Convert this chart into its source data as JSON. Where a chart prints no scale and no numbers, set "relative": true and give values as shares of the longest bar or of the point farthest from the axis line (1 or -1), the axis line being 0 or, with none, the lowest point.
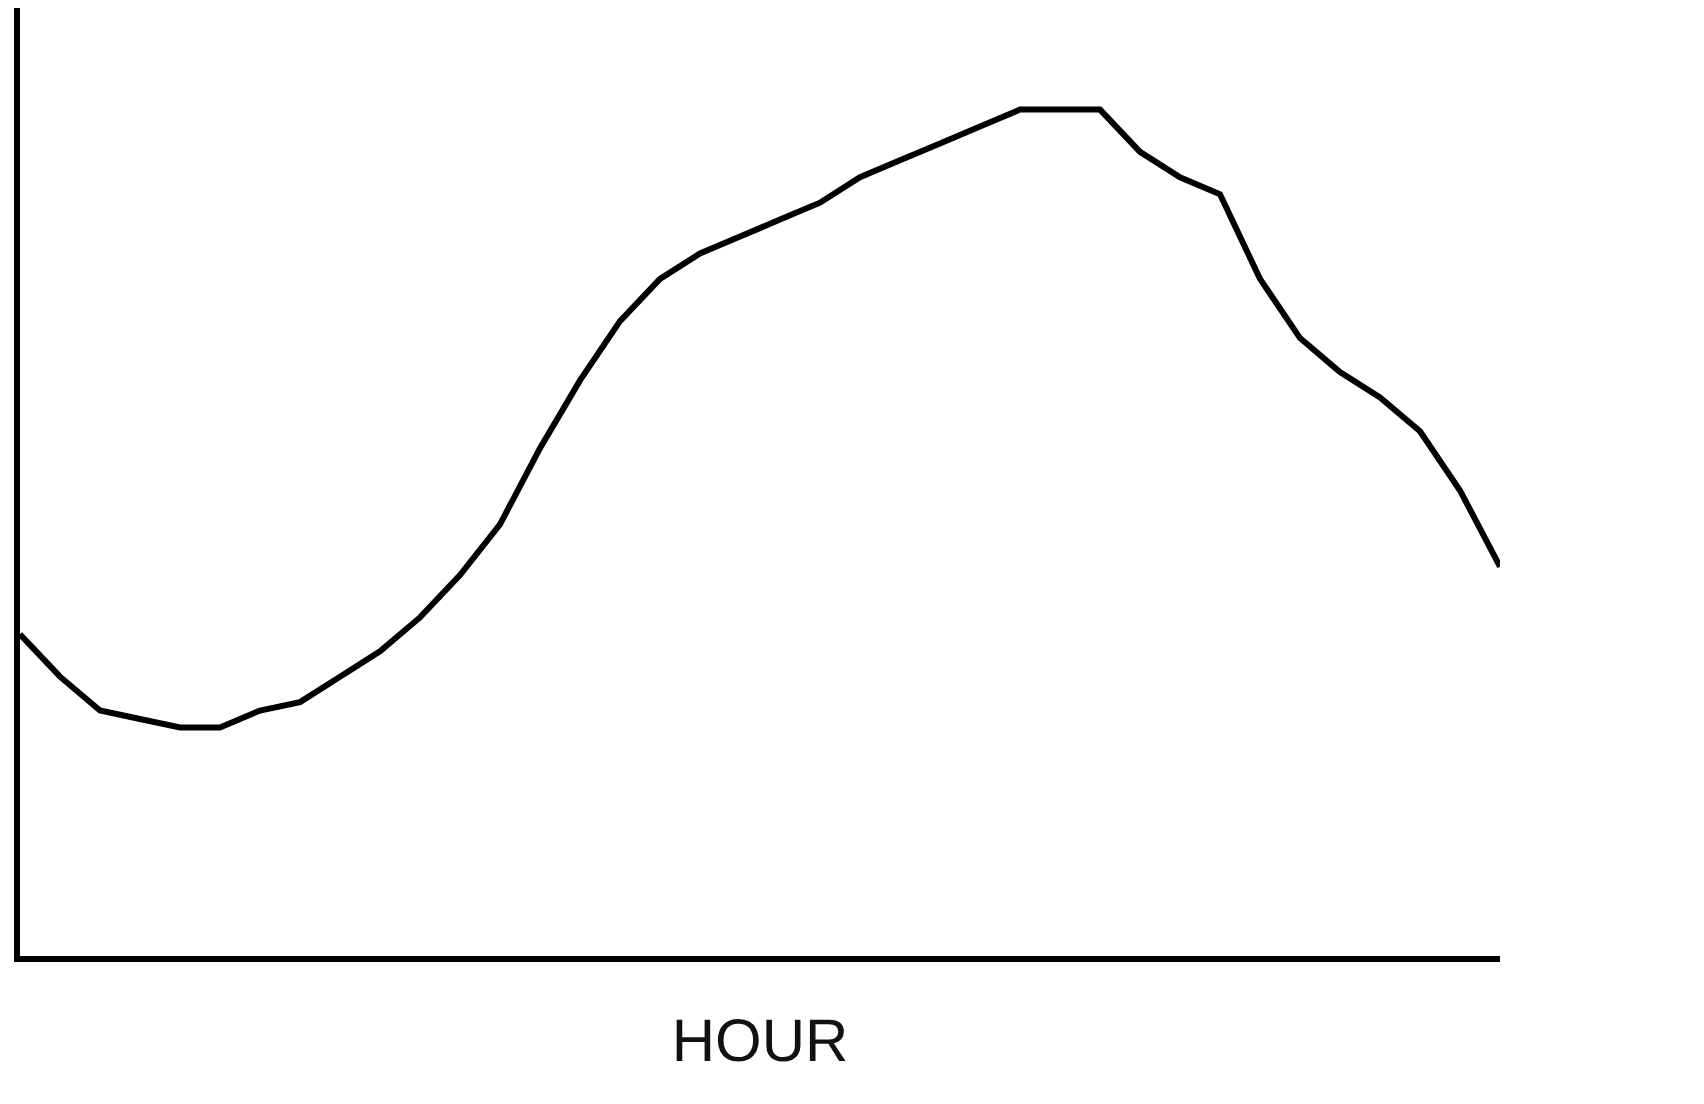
{
  "chart_data": {
    "type": "line",
    "xlabel": "HOUR",
    "relative": true,
    "marker": "none",
    "line_style": "solid",
    "tick_labels": false,
    "categories": [
      null,
      null,
      null,
      null,
      null,
      null,
      null,
      null,
      null,
      null,
      null,
      null,
      null,
      null,
      null,
      null,
      null,
      null,
      null,
      null,
      null,
      null,
      null,
      null,
      null,
      null,
      null,
      null,
      null,
      null,
      null,
      null,
      null,
      null,
      null,
      null,
      null,
      null
    ],
    "series": [
      {
        "color": "#000000",
        "values": [
          0.38,
          0.33,
          0.29,
          0.28,
          0.27,
          0.27,
          0.29,
          0.3,
          0.33,
          0.36,
          0.4,
          0.45,
          0.51,
          0.6,
          0.68,
          0.75,
          0.8,
          0.83,
          0.85,
          0.87,
          0.89,
          0.92,
          0.94,
          0.96,
          0.98,
          1,
          1,
          1,
          0.95,
          0.92,
          0.9,
          0.8,
          0.73,
          0.69,
          0.66,
          0.62,
          0.55,
          0.46
        ]
      }
    ]
  }
}
